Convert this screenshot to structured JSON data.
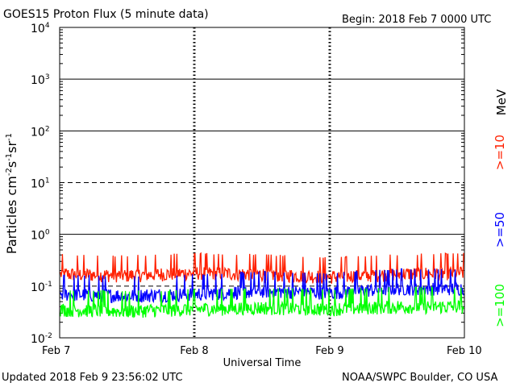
{
  "header": {
    "title": "GOES15 Proton Flux (5 minute data)",
    "begin": "Begin: 2018 Feb 7 0000 UTC"
  },
  "footer": {
    "updated": "Updated 2018 Feb  9 23:56:02 UTC",
    "credit": "NOAA/SWPC Boulder, CO USA"
  },
  "right_labels": {
    "unit": "MeV",
    "e10": ">=10",
    "e50": ">=50",
    "e100": ">=100"
  },
  "colors": {
    "e10": "#ff2000",
    "e50": "#0000ff",
    "e100": "#00ff00"
  },
  "chart_data": {
    "type": "line",
    "title": "GOES15 Proton Flux (5 minute data)",
    "xlabel": "Universal Time",
    "ylabel": "Particles cm-2s-1sr-1",
    "y_scale": "log",
    "ylim": [
      0.01,
      10000
    ],
    "y_ticks": [
      {
        "value": 0.01,
        "base": "10",
        "exp": "-2"
      },
      {
        "value": 0.1,
        "base": "10",
        "exp": "-1"
      },
      {
        "value": 1,
        "base": "10",
        "exp": "0"
      },
      {
        "value": 10,
        "base": "10",
        "exp": "1"
      },
      {
        "value": 100,
        "base": "10",
        "exp": "2"
      },
      {
        "value": 1000,
        "base": "10",
        "exp": "3"
      },
      {
        "value": 10000,
        "base": "10",
        "exp": "4"
      }
    ],
    "x_ticks": [
      "Feb 7",
      "Feb 8",
      "Feb 9",
      "Feb 10"
    ],
    "xlim": [
      "2018-02-07",
      "2018-02-10"
    ],
    "series": [
      {
        "name": ">=10 MeV",
        "key": "e10",
        "x": [
          "2018-02-07T00",
          "2018-02-07T12",
          "2018-02-08T00",
          "2018-02-08T12",
          "2018-02-09T00",
          "2018-02-09T12",
          "2018-02-10T00"
        ],
        "y": [
          0.17,
          0.16,
          0.18,
          0.17,
          0.15,
          0.17,
          0.18
        ]
      },
      {
        "name": ">=50 MeV",
        "key": "e50",
        "x": [
          "2018-02-07T00",
          "2018-02-07T12",
          "2018-02-08T00",
          "2018-02-08T12",
          "2018-02-09T00",
          "2018-02-09T12",
          "2018-02-10T00"
        ],
        "y": [
          0.07,
          0.065,
          0.07,
          0.08,
          0.075,
          0.09,
          0.09
        ]
      },
      {
        "name": ">=100 MeV",
        "key": "e100",
        "x": [
          "2018-02-07T00",
          "2018-02-07T12",
          "2018-02-08T00",
          "2018-02-08T12",
          "2018-02-09T00",
          "2018-02-09T12",
          "2018-02-10T00"
        ],
        "y": [
          0.035,
          0.033,
          0.036,
          0.038,
          0.036,
          0.04,
          0.04
        ]
      }
    ]
  }
}
